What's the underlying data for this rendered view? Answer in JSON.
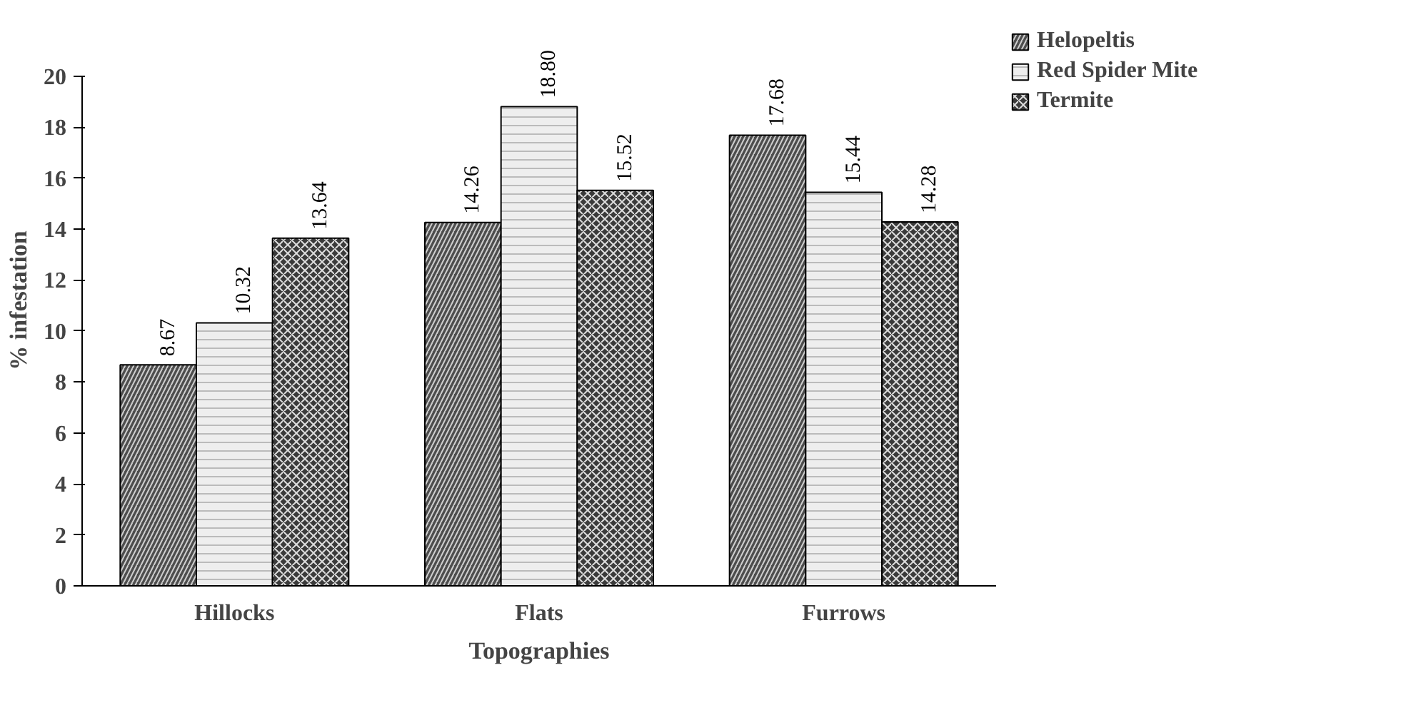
{
  "chart_data": {
    "type": "bar",
    "xlabel": "Topographies",
    "ylabel": "% infestation",
    "categories": [
      "Hillocks",
      "Flats",
      "Furrows"
    ],
    "series": [
      {
        "name": "Helopeltis",
        "color": "#4d4d4d",
        "values": [
          8.67,
          14.26,
          17.68
        ],
        "value_labels": [
          "8.67",
          "14.26",
          "17.68"
        ]
      },
      {
        "name": "Red Spider Mite",
        "color": "#eeeeee",
        "values": [
          10.32,
          18.8,
          15.44
        ],
        "value_labels": [
          "10.32",
          "18.80",
          "15.44"
        ]
      },
      {
        "name": "Termite",
        "color": "#3a3a3a",
        "values": [
          13.64,
          15.52,
          14.28
        ],
        "value_labels": [
          "13.64",
          "15.52",
          "14.28"
        ]
      }
    ],
    "ylim": [
      0,
      20
    ],
    "yticks": [
      0,
      2,
      4,
      6,
      8,
      10,
      12,
      14,
      16,
      18,
      20
    ],
    "grid": false,
    "legend": "top right"
  }
}
